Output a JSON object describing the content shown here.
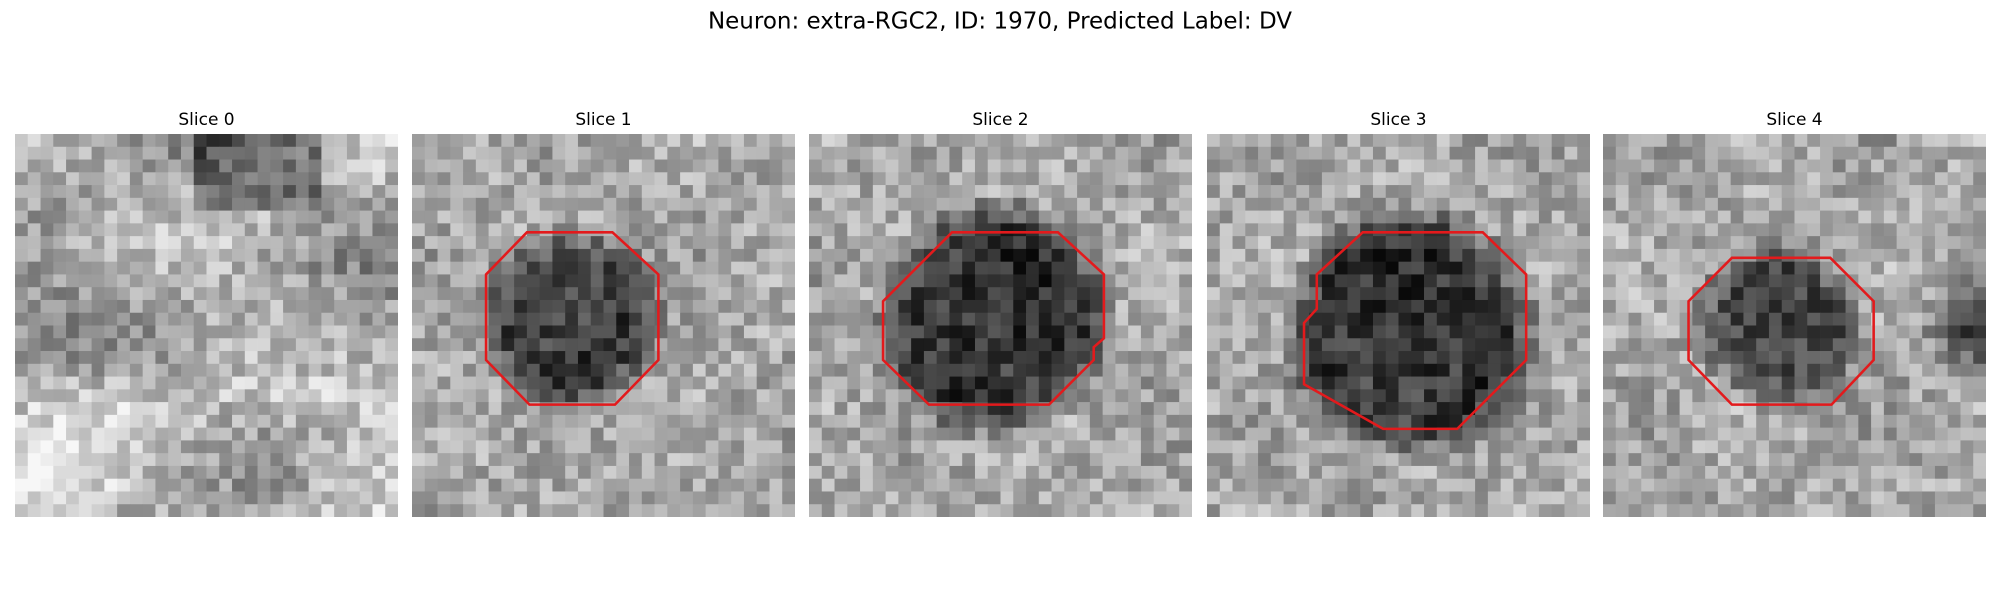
{
  "title": "Neuron: extra-RGC2, ID: 1970, Predicted Label: DV",
  "panels": [
    {
      "title": "Slice 0"
    },
    {
      "title": "Slice 1"
    },
    {
      "title": "Slice 2"
    },
    {
      "title": "Slice 3"
    },
    {
      "title": "Slice 4"
    }
  ]
}
